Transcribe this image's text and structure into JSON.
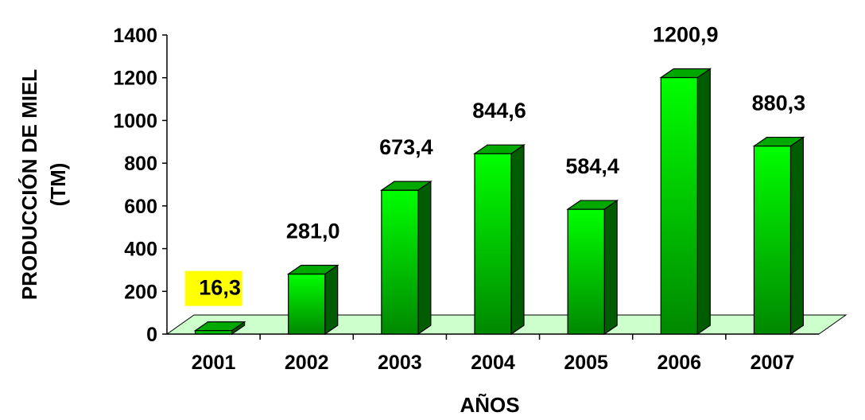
{
  "chart_data": {
    "type": "bar",
    "title": "",
    "xlabel": "AÑOS",
    "ylabel_lines": [
      "PRODUCCIÓN DE MIEL",
      "(TM)"
    ],
    "categories": [
      "2001",
      "2002",
      "2003",
      "2004",
      "2005",
      "2006",
      "2007"
    ],
    "values": [
      16.3,
      281.0,
      673.4,
      844.6,
      584.4,
      1200.9,
      880.3
    ],
    "data_labels": [
      "16,3",
      "281,0",
      "673,4",
      "844,6",
      "584,4",
      "1200,9",
      "880,3"
    ],
    "highlighted_label_index": 0,
    "ylim": [
      0,
      1400
    ],
    "yticks": [
      "0",
      "200",
      "400",
      "600",
      "800",
      "1000",
      "1200",
      "1400"
    ],
    "grid": false,
    "legend": "none",
    "style": "3d-bars",
    "colors": {
      "bar_front_light": "#00ff00",
      "bar_front_dark": "#008800",
      "bar_side": "#005c00",
      "bar_top": "#00a800",
      "floor": "#ccffcc",
      "label_highlight": "#ffff00"
    }
  }
}
